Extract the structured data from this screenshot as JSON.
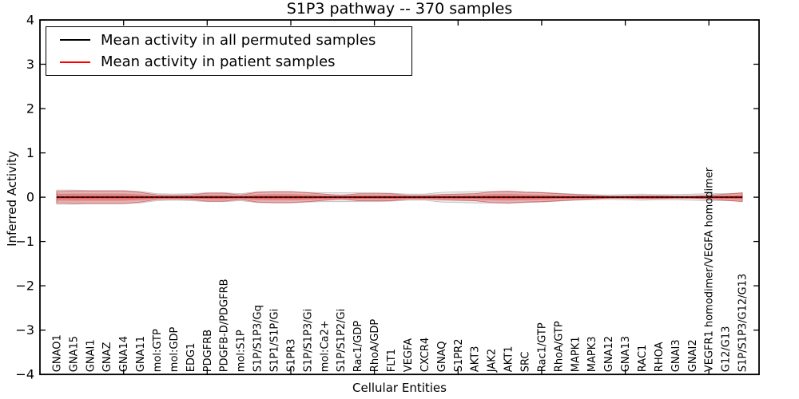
{
  "chart_data": {
    "type": "line",
    "title": "S1P3 pathway -- 370 samples",
    "xlabel": "Cellular Entities",
    "ylabel": "Inferred Activity",
    "ylim": [
      -4,
      4
    ],
    "xlim": [
      0,
      43
    ],
    "yticks": [
      4,
      3,
      2,
      1,
      0,
      -1,
      -2,
      -3,
      -4
    ],
    "grid": false,
    "legend_position": "upper left",
    "categories": [
      "GNAO1",
      "GNA15",
      "GNAI1",
      "GNAZ",
      "GNA14",
      "GNA11",
      "mol:GTP",
      "mol:GDP",
      "EDG1",
      "PDGFRB",
      "PDGFB-D/PDGFRB",
      "mol:S1P",
      "S1P/S1P3/Gq",
      "S1P1/S1P/Gi",
      "S1PR3",
      "S1P/S1P3/Gi",
      "mol:Ca2+",
      "S1P/S1P2/Gi",
      "Rac1/GDP",
      "RhoA/GDP",
      "FLT1",
      "VEGFA",
      "CXCR4",
      "GNAQ",
      "S1PR2",
      "AKT3",
      "JAK2",
      "AKT1",
      "SRC",
      "Rac1/GTP",
      "RhoA/GTP",
      "MAPK1",
      "MAPK3",
      "GNA12",
      "GNA13",
      "RAC1",
      "RHOA",
      "GNAI3",
      "GNAI2",
      "VEGFR1 homodimer/VEGFA homodimer",
      "G12/G13",
      "S1P/S1P3/G12/G13"
    ],
    "series": [
      {
        "name": "Mean activity in all permuted samples",
        "color": "#000000",
        "mean": 0,
        "band_halfwidth": [
          0.16,
          0.16,
          0.15,
          0.15,
          0.15,
          0.13,
          0.08,
          0.07,
          0.08,
          0.1,
          0.1,
          0.08,
          0.12,
          0.13,
          0.13,
          0.11,
          0.1,
          0.1,
          0.1,
          0.1,
          0.09,
          0.07,
          0.07,
          0.11,
          0.12,
          0.13,
          0.13,
          0.14,
          0.12,
          0.11,
          0.09,
          0.07,
          0.06,
          0.05,
          0.06,
          0.07,
          0.06,
          0.06,
          0.07,
          0.08,
          0.08,
          0.08
        ],
        "band_fill": "#999999"
      },
      {
        "name": "Mean activity in patient samples",
        "color": "#ff0000",
        "mean": 0,
        "band_halfwidth": [
          0.13,
          0.14,
          0.14,
          0.14,
          0.14,
          0.11,
          0.05,
          0.04,
          0.05,
          0.09,
          0.09,
          0.05,
          0.11,
          0.12,
          0.12,
          0.1,
          0.07,
          0.04,
          0.08,
          0.08,
          0.08,
          0.04,
          0.04,
          0.06,
          0.07,
          0.08,
          0.12,
          0.13,
          0.11,
          0.1,
          0.08,
          0.06,
          0.04,
          0.02,
          0.02,
          0.03,
          0.03,
          0.02,
          0.02,
          0.04,
          0.07,
          0.1
        ],
        "band_fill": "#e03a3a"
      }
    ]
  }
}
